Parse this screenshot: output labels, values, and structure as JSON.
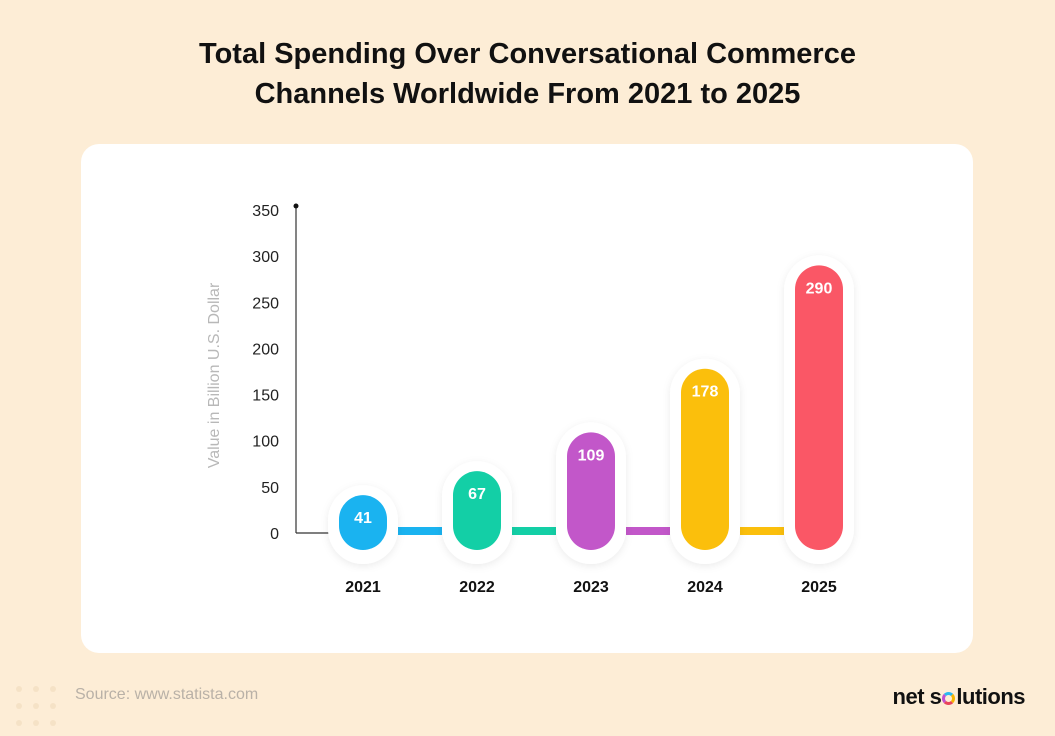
{
  "title": {
    "line1": "Total Spending Over Conversational Commerce",
    "line2": "Channels Worldwide From 2021 to 2025"
  },
  "source": "Source: www.statista.com",
  "brand": {
    "part1": "net s",
    "part2": "lutions"
  },
  "chart_data": {
    "type": "bar",
    "title": "Total Spending Over Conversational Commerce Channels Worldwide From 2021 to 2025",
    "xlabel": "",
    "ylabel": "Value in Billion U.S. Dollar",
    "categories": [
      "2021",
      "2022",
      "2023",
      "2024",
      "2025"
    ],
    "values": [
      41,
      67,
      109,
      178,
      290
    ],
    "colors": [
      "#1ab3f0",
      "#13cfa6",
      "#c257c9",
      "#fbbf0c",
      "#fa5766"
    ],
    "ylim": [
      0,
      350
    ],
    "yticks": [
      0,
      50,
      100,
      150,
      200,
      250,
      300,
      350
    ],
    "grid": false,
    "legend": "none",
    "data_labels": true
  }
}
